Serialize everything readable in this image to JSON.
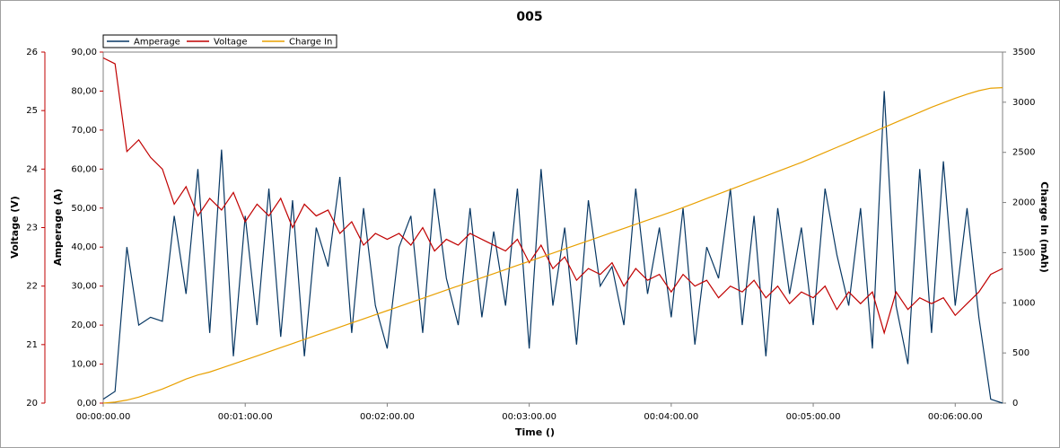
{
  "chart_data": {
    "type": "line",
    "title": "005",
    "x_label": "Time ()",
    "y_label": "Amperage (A)",
    "y2_label": "Charge In (mAh)",
    "y3_label": "Voltage (V)",
    "x": [
      0,
      5,
      10,
      15,
      20,
      25,
      30,
      35,
      40,
      45,
      50,
      55,
      60,
      65,
      70,
      75,
      80,
      85,
      90,
      95,
      100,
      105,
      110,
      115,
      120,
      125,
      130,
      135,
      140,
      145,
      150,
      155,
      160,
      165,
      170,
      175,
      180,
      185,
      190,
      195,
      200,
      205,
      210,
      215,
      220,
      225,
      230,
      235,
      240,
      245,
      250,
      255,
      260,
      265,
      270,
      275,
      280,
      285,
      290,
      295,
      300,
      305,
      310,
      315,
      320,
      325,
      330,
      335,
      340,
      345,
      350,
      355,
      360,
      365,
      370,
      375,
      380
    ],
    "xlim": [
      0,
      380
    ],
    "xticks": [
      {
        "value": 0,
        "label": "00:00:00.00"
      },
      {
        "value": 60,
        "label": "00:01:00.00"
      },
      {
        "value": 120,
        "label": "00:02:00.00"
      },
      {
        "value": 180,
        "label": "00:03:00.00"
      },
      {
        "value": 240,
        "label": "00:04:00.00"
      },
      {
        "value": 300,
        "label": "00:05:00.00"
      },
      {
        "value": 360,
        "label": "00:06:00.00"
      }
    ],
    "ylim": [
      0,
      90
    ],
    "yticks": [
      {
        "value": 0,
        "label": "0,00"
      },
      {
        "value": 10,
        "label": "10,00"
      },
      {
        "value": 20,
        "label": "20,00"
      },
      {
        "value": 30,
        "label": "30,00"
      },
      {
        "value": 40,
        "label": "40,00"
      },
      {
        "value": 50,
        "label": "50,00"
      },
      {
        "value": 60,
        "label": "60,00"
      },
      {
        "value": 70,
        "label": "70,00"
      },
      {
        "value": 80,
        "label": "80,00"
      },
      {
        "value": 90,
        "label": "90,00"
      }
    ],
    "y2lim": [
      0,
      3500
    ],
    "y2ticks": [
      0,
      500,
      1000,
      1500,
      2000,
      2500,
      3000,
      3500
    ],
    "y3lim": [
      20,
      26
    ],
    "y3ticks": [
      20,
      21,
      22,
      23,
      24,
      25,
      26
    ],
    "series": [
      {
        "name": "Amperage",
        "color": "#073763",
        "axis": "y",
        "values": [
          1,
          3,
          40,
          20,
          22,
          21,
          48,
          28,
          60,
          18,
          65,
          12,
          48,
          20,
          55,
          17,
          52,
          12,
          45,
          35,
          58,
          18,
          50,
          25,
          14,
          40,
          48,
          18,
          55,
          32,
          20,
          50,
          22,
          44,
          25,
          55,
          14,
          60,
          25,
          45,
          15,
          52,
          30,
          35,
          20,
          55,
          28,
          45,
          22,
          50,
          15,
          40,
          32,
          55,
          20,
          48,
          12,
          50,
          28,
          45,
          20,
          55,
          38,
          25,
          50,
          14,
          80,
          25,
          10,
          60,
          18,
          62,
          25,
          50,
          22,
          1,
          0
        ]
      },
      {
        "name": "Voltage",
        "color": "#c00000",
        "axis": "y3",
        "values": [
          25.9,
          25.8,
          24.3,
          24.5,
          24.2,
          24.0,
          23.4,
          23.7,
          23.2,
          23.5,
          23.3,
          23.6,
          23.1,
          23.4,
          23.2,
          23.5,
          23.0,
          23.4,
          23.2,
          23.3,
          22.9,
          23.1,
          22.7,
          22.9,
          22.8,
          22.9,
          22.7,
          23.0,
          22.6,
          22.8,
          22.7,
          22.9,
          22.8,
          22.7,
          22.6,
          22.8,
          22.4,
          22.7,
          22.3,
          22.5,
          22.1,
          22.3,
          22.2,
          22.4,
          22.0,
          22.3,
          22.1,
          22.2,
          21.9,
          22.2,
          22.0,
          22.1,
          21.8,
          22.0,
          21.9,
          22.1,
          21.8,
          22.0,
          21.7,
          21.9,
          21.8,
          22.0,
          21.6,
          21.9,
          21.7,
          21.9,
          21.2,
          21.9,
          21.6,
          21.8,
          21.7,
          21.8,
          21.5,
          21.7,
          21.9,
          22.2,
          22.3
        ]
      },
      {
        "name": "Charge In",
        "color": "#e8a000",
        "axis": "y2",
        "values": [
          0,
          10,
          30,
          60,
          100,
          140,
          190,
          240,
          280,
          310,
          350,
          390,
          430,
          471,
          512,
          553,
          594,
          635,
          676,
          717,
          758,
          799,
          840,
          881,
          922,
          963,
          1004,
          1045,
          1086,
          1127,
          1168,
          1209,
          1250,
          1291,
          1332,
          1373,
          1414,
          1455,
          1496,
          1537,
          1578,
          1619,
          1660,
          1701,
          1742,
          1783,
          1824,
          1865,
          1906,
          1950,
          1995,
          2040,
          2085,
          2130,
          2175,
          2220,
          2265,
          2310,
          2355,
          2400,
          2450,
          2500,
          2550,
          2600,
          2650,
          2700,
          2750,
          2800,
          2850,
          2900,
          2950,
          2995,
          3040,
          3080,
          3115,
          3140,
          3145
        ]
      }
    ]
  }
}
